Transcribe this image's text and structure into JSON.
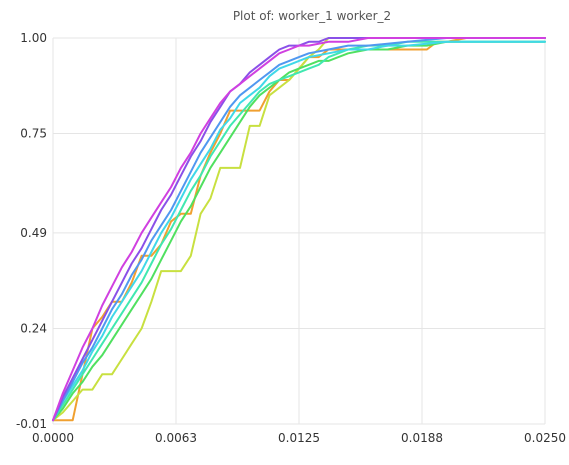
{
  "chart_data": {
    "type": "line",
    "title": "Plot of: worker_1 worker_2",
    "xlabel": "",
    "ylabel": "",
    "xlim": [
      0,
      0.025
    ],
    "ylim": [
      -0.01,
      1.0
    ],
    "x_ticks": [
      0,
      0.00625,
      0.0125,
      0.01875,
      0.025
    ],
    "x_tick_labels": [
      "0.0000",
      "0.0063",
      "0.0125",
      "0.0188",
      "0.0250"
    ],
    "y_ticks": [
      -0.01,
      0.24,
      0.49,
      0.75,
      1.0
    ],
    "y_tick_labels": [
      "-0.01",
      "0.24",
      "0.49",
      "0.75",
      "1.00"
    ],
    "grid": true,
    "legend": "none",
    "series": [
      {
        "color": "#f0a030",
        "x": [
          0,
          0.0005,
          0.001,
          0.0015,
          0.002,
          0.0025,
          0.003,
          0.0035,
          0.004,
          0.0045,
          0.005,
          0.0055,
          0.006,
          0.0065,
          0.007,
          0.0075,
          0.008,
          0.0085,
          0.009,
          0.0095,
          0.01,
          0.0105,
          0.011,
          0.0115,
          0.012,
          0.0125,
          0.013,
          0.0135,
          0.014,
          0.0145,
          0.015,
          0.016,
          0.017,
          0.018,
          0.019,
          0.0195,
          0.02,
          0.021,
          0.025
        ],
        "y": [
          0,
          0,
          0,
          0.12,
          0.24,
          0.27,
          0.31,
          0.31,
          0.36,
          0.43,
          0.43,
          0.46,
          0.52,
          0.54,
          0.54,
          0.64,
          0.7,
          0.75,
          0.81,
          0.81,
          0.81,
          0.81,
          0.86,
          0.89,
          0.89,
          0.92,
          0.95,
          0.95,
          0.97,
          0.97,
          0.97,
          0.97,
          0.97,
          0.97,
          0.97,
          0.99,
          0.99,
          1.0,
          1.0
        ]
      },
      {
        "color": "#c8e040",
        "x": [
          0,
          0.0005,
          0.001,
          0.0015,
          0.002,
          0.0025,
          0.003,
          0.0035,
          0.004,
          0.0045,
          0.005,
          0.0055,
          0.006,
          0.0065,
          0.007,
          0.0075,
          0.008,
          0.0085,
          0.009,
          0.0095,
          0.01,
          0.0105,
          0.011,
          0.0115,
          0.012,
          0.0125,
          0.013,
          0.0135,
          0.014,
          0.0145,
          0.015,
          0.016,
          0.018,
          0.02,
          0.025
        ],
        "y": [
          0,
          0.02,
          0.05,
          0.08,
          0.08,
          0.12,
          0.12,
          0.16,
          0.2,
          0.24,
          0.31,
          0.39,
          0.39,
          0.39,
          0.43,
          0.54,
          0.58,
          0.66,
          0.66,
          0.66,
          0.77,
          0.77,
          0.85,
          0.87,
          0.89,
          0.92,
          0.95,
          0.97,
          1.0,
          1.0,
          1.0,
          1.0,
          1.0,
          1.0,
          1.0
        ]
      },
      {
        "color": "#50e060",
        "x": [
          0,
          0.0005,
          0.001,
          0.0015,
          0.002,
          0.0025,
          0.003,
          0.0035,
          0.004,
          0.0045,
          0.005,
          0.0055,
          0.006,
          0.0065,
          0.007,
          0.0075,
          0.008,
          0.0085,
          0.009,
          0.0095,
          0.01,
          0.0105,
          0.011,
          0.0115,
          0.012,
          0.0125,
          0.013,
          0.0135,
          0.014,
          0.0145,
          0.015,
          0.016,
          0.017,
          0.018,
          0.019,
          0.02,
          0.022,
          0.025
        ],
        "y": [
          0,
          0.03,
          0.07,
          0.1,
          0.14,
          0.17,
          0.21,
          0.25,
          0.29,
          0.33,
          0.37,
          0.42,
          0.47,
          0.52,
          0.56,
          0.61,
          0.66,
          0.7,
          0.74,
          0.78,
          0.82,
          0.85,
          0.87,
          0.89,
          0.91,
          0.92,
          0.93,
          0.94,
          0.94,
          0.95,
          0.96,
          0.97,
          0.97,
          0.98,
          0.98,
          0.99,
          0.99,
          0.99
        ]
      },
      {
        "color": "#40e8b0",
        "x": [
          0,
          0.0005,
          0.001,
          0.0015,
          0.002,
          0.0025,
          0.003,
          0.0035,
          0.004,
          0.0045,
          0.005,
          0.0055,
          0.006,
          0.0065,
          0.007,
          0.0075,
          0.008,
          0.0085,
          0.009,
          0.0095,
          0.01,
          0.0105,
          0.011,
          0.0115,
          0.012,
          0.0125,
          0.013,
          0.0135,
          0.014,
          0.0145,
          0.015,
          0.016,
          0.017,
          0.018,
          0.02,
          0.025
        ],
        "y": [
          0,
          0.04,
          0.08,
          0.12,
          0.16,
          0.2,
          0.24,
          0.28,
          0.32,
          0.36,
          0.41,
          0.46,
          0.5,
          0.55,
          0.6,
          0.64,
          0.69,
          0.73,
          0.77,
          0.8,
          0.83,
          0.86,
          0.88,
          0.89,
          0.9,
          0.91,
          0.92,
          0.93,
          0.95,
          0.96,
          0.97,
          0.98,
          0.98,
          0.99,
          0.99,
          0.99
        ]
      },
      {
        "color": "#40d8e8",
        "x": [
          0,
          0.0005,
          0.001,
          0.0015,
          0.002,
          0.0025,
          0.003,
          0.0035,
          0.004,
          0.0045,
          0.005,
          0.0055,
          0.006,
          0.0065,
          0.007,
          0.0075,
          0.008,
          0.0085,
          0.009,
          0.0095,
          0.01,
          0.0105,
          0.011,
          0.0115,
          0.012,
          0.0125,
          0.013,
          0.014,
          0.015,
          0.016,
          0.017,
          0.018,
          0.02,
          0.025
        ],
        "y": [
          0,
          0.05,
          0.09,
          0.13,
          0.18,
          0.22,
          0.27,
          0.31,
          0.35,
          0.39,
          0.44,
          0.49,
          0.53,
          0.58,
          0.63,
          0.67,
          0.71,
          0.76,
          0.79,
          0.83,
          0.85,
          0.87,
          0.9,
          0.92,
          0.93,
          0.94,
          0.95,
          0.96,
          0.97,
          0.97,
          0.98,
          0.98,
          0.99,
          0.99
        ]
      },
      {
        "color": "#5098f0",
        "x": [
          0,
          0.0005,
          0.001,
          0.0015,
          0.002,
          0.0025,
          0.003,
          0.0035,
          0.004,
          0.0045,
          0.005,
          0.0055,
          0.006,
          0.0065,
          0.007,
          0.0075,
          0.008,
          0.0085,
          0.009,
          0.0095,
          0.01,
          0.0105,
          0.011,
          0.0115,
          0.012,
          0.0125,
          0.013,
          0.014,
          0.015,
          0.016,
          0.018,
          0.02,
          0.025
        ],
        "y": [
          0,
          0.05,
          0.1,
          0.15,
          0.19,
          0.24,
          0.29,
          0.33,
          0.38,
          0.42,
          0.47,
          0.51,
          0.55,
          0.6,
          0.65,
          0.7,
          0.74,
          0.78,
          0.82,
          0.85,
          0.87,
          0.89,
          0.91,
          0.93,
          0.94,
          0.95,
          0.96,
          0.97,
          0.98,
          0.98,
          0.99,
          1.0,
          1.0
        ]
      },
      {
        "color": "#8a50e8",
        "x": [
          0,
          0.0005,
          0.001,
          0.0015,
          0.002,
          0.0025,
          0.003,
          0.0035,
          0.004,
          0.0045,
          0.005,
          0.0055,
          0.006,
          0.0065,
          0.007,
          0.0075,
          0.008,
          0.0085,
          0.009,
          0.0095,
          0.01,
          0.0105,
          0.011,
          0.0115,
          0.012,
          0.0125,
          0.013,
          0.0135,
          0.014,
          0.015,
          0.016,
          0.017,
          0.018,
          0.02,
          0.025
        ],
        "y": [
          0,
          0.06,
          0.11,
          0.16,
          0.21,
          0.26,
          0.31,
          0.36,
          0.41,
          0.45,
          0.5,
          0.55,
          0.59,
          0.64,
          0.69,
          0.73,
          0.78,
          0.82,
          0.86,
          0.88,
          0.91,
          0.93,
          0.95,
          0.97,
          0.98,
          0.98,
          0.99,
          0.99,
          1.0,
          1.0,
          1.0,
          1.0,
          1.0,
          1.0,
          1.0
        ]
      },
      {
        "color": "#d040e0",
        "x": [
          0,
          0.0005,
          0.001,
          0.0015,
          0.002,
          0.0025,
          0.003,
          0.0035,
          0.004,
          0.0045,
          0.005,
          0.0055,
          0.006,
          0.0065,
          0.007,
          0.0075,
          0.008,
          0.0085,
          0.009,
          0.0095,
          0.01,
          0.0105,
          0.011,
          0.0115,
          0.012,
          0.0125,
          0.013,
          0.014,
          0.015,
          0.016,
          0.018,
          0.02,
          0.025
        ],
        "y": [
          0,
          0.07,
          0.13,
          0.19,
          0.24,
          0.3,
          0.35,
          0.4,
          0.44,
          0.49,
          0.53,
          0.57,
          0.61,
          0.66,
          0.7,
          0.75,
          0.79,
          0.83,
          0.86,
          0.88,
          0.9,
          0.92,
          0.94,
          0.96,
          0.97,
          0.98,
          0.98,
          0.99,
          0.99,
          1.0,
          1.0,
          1.0,
          1.0
        ]
      }
    ]
  }
}
